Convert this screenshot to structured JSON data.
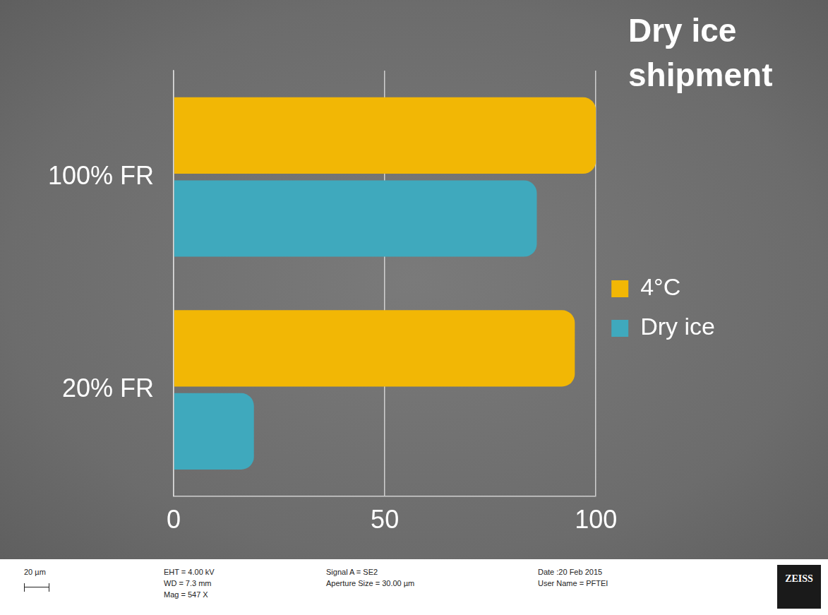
{
  "chart_data": {
    "type": "bar",
    "orientation": "horizontal",
    "title": "Dry ice shipment",
    "categories": [
      "100% FR",
      "20% FR"
    ],
    "series": [
      {
        "name": "4°C",
        "color": "#f2b705",
        "values": [
          100,
          95
        ]
      },
      {
        "name": "Dry ice",
        "color": "#3fa9bd",
        "values": [
          86,
          19
        ]
      }
    ],
    "xlim": [
      0,
      100
    ],
    "xticks": [
      0,
      50,
      100
    ],
    "grid": true,
    "legend": "right"
  },
  "footer": {
    "scale_bar": "20 µm",
    "column1": [
      "EHT = 4.00 kV",
      "WD = 7.3 mm",
      "Mag =  547 X"
    ],
    "column2": [
      "Signal A = SE2",
      "Aperture Size = 30.00 µm"
    ],
    "column3": [
      "Date :20 Feb 2015",
      "User Name = PFTEI"
    ],
    "logo": "ZEISS"
  }
}
